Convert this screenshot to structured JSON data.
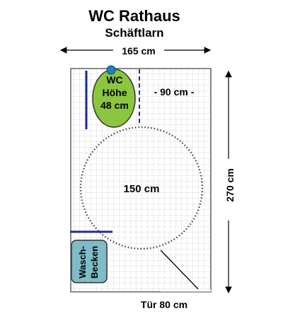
{
  "title": "WC Rathaus",
  "subtitle": "Schäftlarn",
  "dimensions": {
    "width_label": "165 cm",
    "height_label": "270 cm",
    "door_label": "Tür 80 cm",
    "clearance_label": "- 90 cm -",
    "turning_circle_label": "150 cm"
  },
  "toilet": {
    "line1": "WC",
    "line2": "Höhe",
    "line3": "48 cm",
    "color": "#8cc63f"
  },
  "sink": {
    "line1": "Wasch-",
    "line2": "Becken",
    "color": "#7fbcc8"
  },
  "colors": {
    "grab_bar": "#1f2f8f",
    "tile_lines": "#d8d8d8",
    "wall": "#8a8a8a",
    "circle": "#444444"
  }
}
